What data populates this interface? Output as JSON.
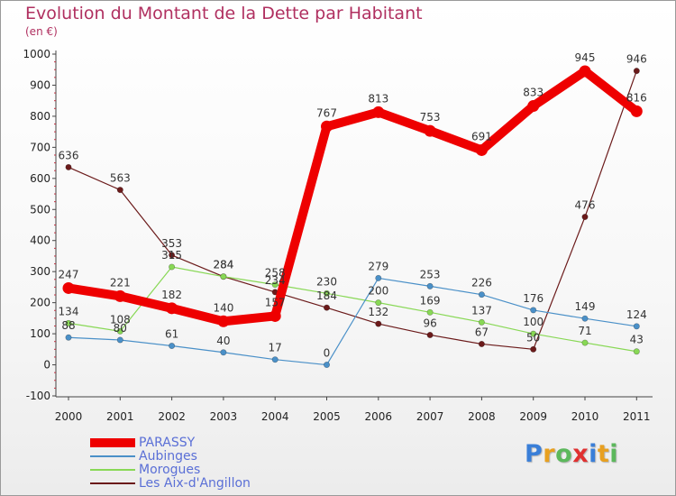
{
  "chart_data": {
    "type": "line",
    "title": "Evolution du Montant de la Dette par Habitant",
    "subtitle": "(en €)",
    "x": [
      "2000",
      "2001",
      "2002",
      "2003",
      "2004",
      "2005",
      "2006",
      "2007",
      "2008",
      "2009",
      "2010",
      "2011"
    ],
    "ylim": [
      -100,
      1000
    ],
    "yticks": [
      "-100",
      "0",
      "100",
      "200",
      "300",
      "400",
      "500",
      "600",
      "700",
      "800",
      "900",
      "1000"
    ],
    "grid": false,
    "legend_position": "bottom-left",
    "series": [
      {
        "name": "PARASSY",
        "color": "#ee0000",
        "values": [
          247,
          221,
          182,
          140,
          157,
          767,
          813,
          753,
          691,
          833,
          945,
          816
        ],
        "labels": [
          "247",
          "221",
          "182",
          "140",
          "157",
          "767",
          "813",
          "753",
          "691",
          "833",
          "945",
          "816"
        ]
      },
      {
        "name": "Aubinges",
        "color": "#4a90c8",
        "values": [
          88,
          80,
          61,
          40,
          17,
          0,
          279,
          253,
          226,
          176,
          149,
          124
        ],
        "labels": [
          "88",
          "80",
          "61",
          "40",
          "17",
          "0",
          "279",
          "253",
          "226",
          "176",
          "149",
          "124"
        ]
      },
      {
        "name": "Morogues",
        "color": "#88d855",
        "values": [
          134,
          108,
          315,
          284,
          258,
          230,
          200,
          169,
          137,
          100,
          71,
          43
        ],
        "labels": [
          "134",
          "108",
          "315",
          "284",
          "258",
          "230",
          "200",
          "169",
          "137",
          "100",
          "71",
          "43"
        ]
      },
      {
        "name": "Les Aix-d'Angillon",
        "color": "#6b1a1a",
        "values": [
          636,
          563,
          353,
          284,
          234,
          184,
          132,
          96,
          67,
          50,
          476,
          946
        ],
        "labels": [
          "636",
          "563",
          "353",
          "284",
          "234",
          "184",
          "132",
          "96",
          "67",
          "50",
          "476",
          "946"
        ]
      }
    ]
  },
  "logo": {
    "letters": [
      "P",
      "r",
      "o",
      "x",
      "i",
      "t",
      "i"
    ],
    "colors": [
      "#3a7fd8",
      "#e8a020",
      "#5cb85c",
      "#e03030",
      "#3a7fd8",
      "#e8a020",
      "#5cb85c"
    ]
  }
}
